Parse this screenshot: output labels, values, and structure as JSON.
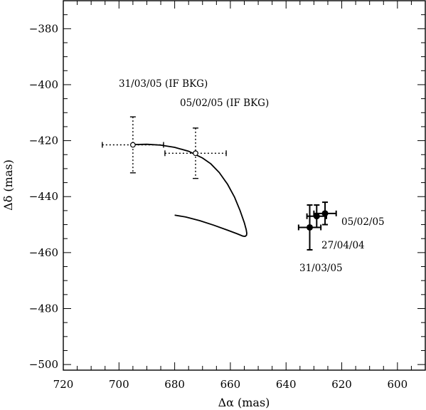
{
  "chart_data": {
    "type": "scatter",
    "xlabel": "Δα (mas)",
    "ylabel": "Δδ (mas)",
    "xlim": [
      720,
      590
    ],
    "ylim": [
      -502,
      -370
    ],
    "x_ticks": [
      720,
      700,
      680,
      660,
      640,
      620,
      600
    ],
    "y_ticks": [
      -380,
      -400,
      -420,
      -440,
      -460,
      -480,
      -500
    ],
    "x_tick_labels": [
      "720",
      "700",
      "680",
      "660",
      "640",
      "620",
      "600"
    ],
    "y_tick_labels": [
      "−380",
      "−400",
      "−420",
      "−440",
      "−460",
      "−480",
      "−500"
    ],
    "grid": false,
    "series": [
      {
        "marker": "open-circle",
        "errorbar_style": "dotted",
        "points": [
          {
            "x": 695,
            "y": -421.5,
            "xerr": 11,
            "yerr": 10
          },
          {
            "x": 672.5,
            "y": -424.5,
            "xerr": 11,
            "yerr": 9
          }
        ]
      },
      {
        "marker": "filled-circle",
        "errorbar_style": "solid",
        "points": [
          {
            "x": 631.5,
            "y": -451,
            "xerr": 4,
            "yerr": 8
          },
          {
            "x": 629,
            "y": -447,
            "xerr": 3.5,
            "yerr": 4
          },
          {
            "x": 626,
            "y": -446,
            "xerr": 4,
            "yerr": 4
          }
        ]
      }
    ],
    "track": [
      [
        695,
        -421.4
      ],
      [
        690,
        -421.3
      ],
      [
        685,
        -421.6
      ],
      [
        680,
        -422.4
      ],
      [
        675,
        -423.8
      ],
      [
        670,
        -426.2
      ],
      [
        667,
        -428.3
      ],
      [
        664,
        -431.4
      ],
      [
        661,
        -435.6
      ],
      [
        658.5,
        -440.2
      ],
      [
        656.5,
        -445
      ],
      [
        655,
        -449.3
      ],
      [
        654.3,
        -451.8
      ],
      [
        654.1,
        -453.1
      ],
      [
        654.2,
        -453.8
      ],
      [
        654.7,
        -454.2
      ],
      [
        655.5,
        -454.1
      ],
      [
        657.5,
        -453.3
      ],
      [
        661,
        -452
      ],
      [
        666,
        -450.2
      ],
      [
        671,
        -448.6
      ],
      [
        676,
        -447.3
      ],
      [
        680,
        -446.6
      ]
    ],
    "annotations": [
      {
        "text": "31/03/05 (IF BKG)"
      },
      {
        "text": "05/02/05 (IF BKG)"
      },
      {
        "text": "05/02/05"
      },
      {
        "text": "27/04/04"
      },
      {
        "text": "31/03/05"
      }
    ]
  }
}
